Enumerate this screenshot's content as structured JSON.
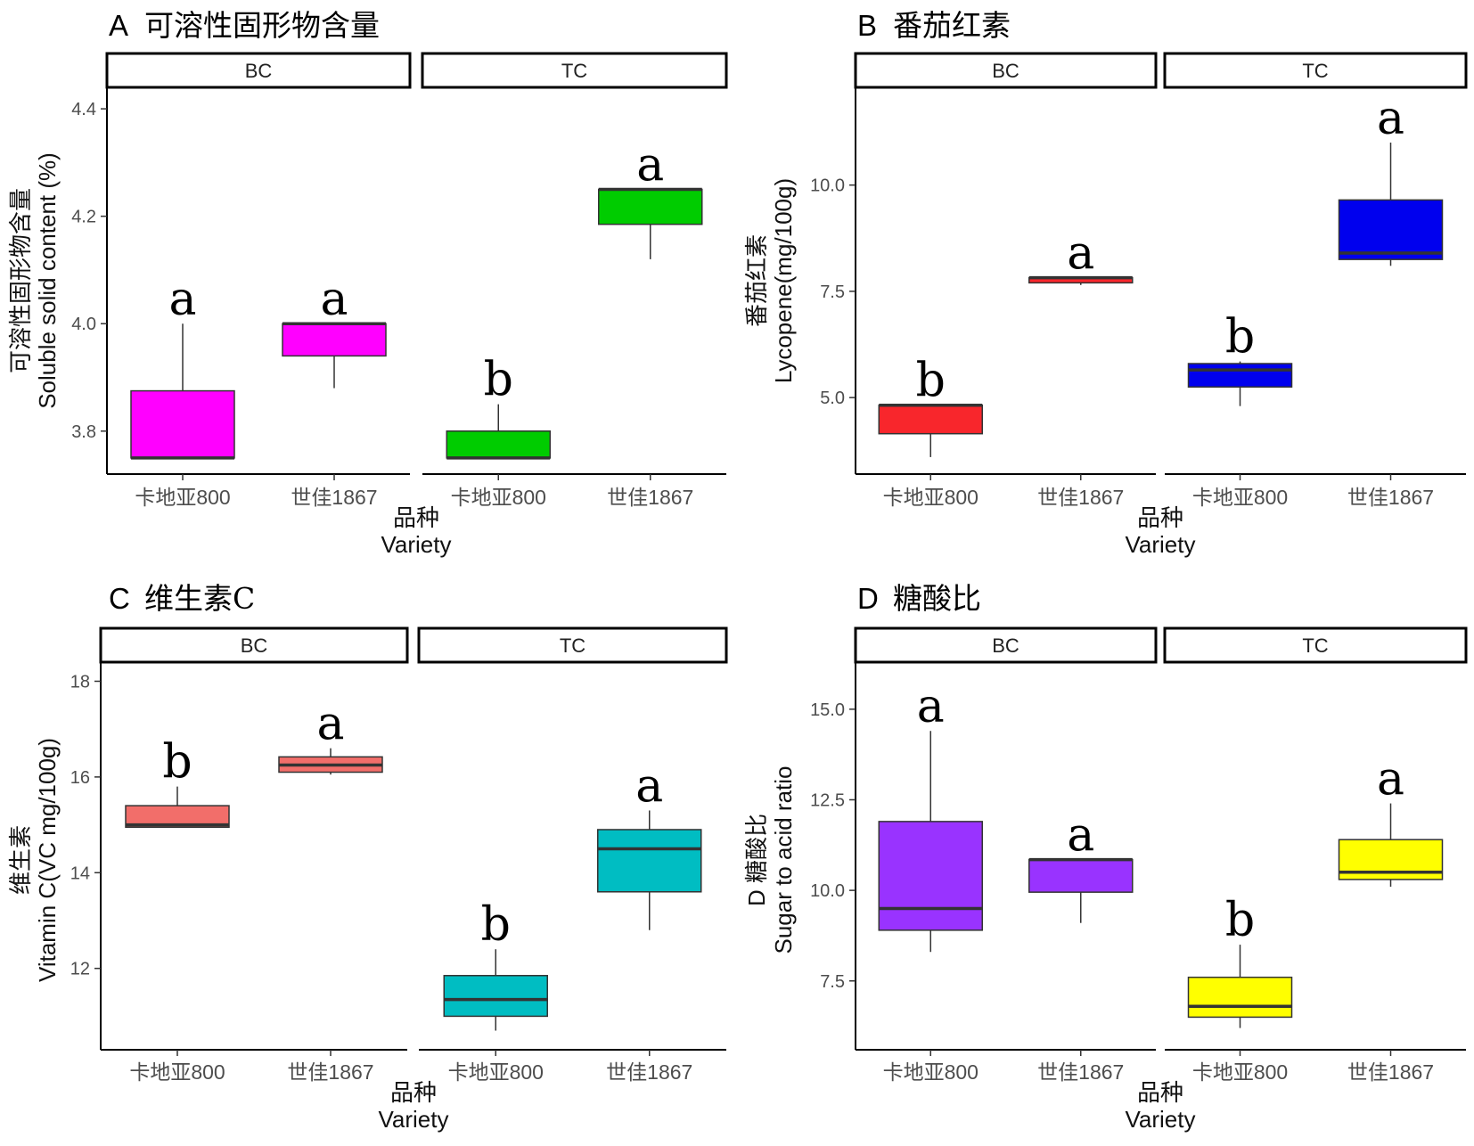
{
  "chart_data": [
    {
      "type": "boxplot",
      "panel_letter": "A",
      "title": "可溶性固形物含量",
      "ylabel_cn": "可溶性固形物含量",
      "ylabel_en": "Soluble solid content (%)",
      "xlabel_cn": "品种",
      "xlabel_en": "Variety",
      "ylim": [
        3.72,
        4.44
      ],
      "yticks": [
        "3.8",
        "4.0",
        "4.2",
        "4.4"
      ],
      "facets": [
        {
          "label": "BC",
          "color": "#ff00ff",
          "boxes": [
            {
              "category": "卡地亚800",
              "min": 3.75,
              "q1": 3.75,
              "median": 3.75,
              "q3": 3.875,
              "max": 4.0,
              "sig": "a"
            },
            {
              "category": "世佳1867",
              "min": 3.88,
              "q1": 3.94,
              "median": 4.0,
              "q3": 4.0,
              "max": 4.0,
              "sig": "a"
            }
          ]
        },
        {
          "label": "TC",
          "color": "#00cc00",
          "boxes": [
            {
              "category": "卡地亚800",
              "min": 3.75,
              "q1": 3.75,
              "median": 3.75,
              "q3": 3.8,
              "max": 3.85,
              "sig": "b"
            },
            {
              "category": "世佳1867",
              "min": 4.12,
              "q1": 4.185,
              "median": 4.25,
              "q3": 4.25,
              "max": 4.25,
              "sig": "a"
            }
          ]
        }
      ]
    },
    {
      "type": "boxplot",
      "panel_letter": "B",
      "title": "番茄红素",
      "ylabel_cn": "番茄红素",
      "ylabel_en": "Lycopene(mg/100g)",
      "xlabel_cn": "品种",
      "xlabel_en": "Variety",
      "ylim": [
        3.2,
        12.3
      ],
      "yticks": [
        "5.0",
        "7.5",
        "10.0"
      ],
      "facets": [
        {
          "label": "BC",
          "color": "#f8262c",
          "boxes": [
            {
              "category": "卡地亚800",
              "min": 3.6,
              "q1": 4.15,
              "median": 4.82,
              "q3": 4.82,
              "max": 4.82,
              "sig": "b"
            },
            {
              "category": "世佳1867",
              "min": 7.65,
              "q1": 7.7,
              "median": 7.82,
              "q3": 7.82,
              "max": 7.82,
              "sig": "a"
            }
          ]
        },
        {
          "label": "TC",
          "color": "#0000ee",
          "boxes": [
            {
              "category": "卡地亚800",
              "min": 4.8,
              "q1": 5.25,
              "median": 5.65,
              "q3": 5.8,
              "max": 5.85,
              "sig": "b"
            },
            {
              "category": "世佳1867",
              "min": 8.1,
              "q1": 8.25,
              "median": 8.4,
              "q3": 9.65,
              "max": 11.0,
              "sig": "a"
            }
          ]
        }
      ]
    },
    {
      "type": "boxplot",
      "panel_letter": "C",
      "title": "维生素C",
      "ylabel_cn": "维生素",
      "ylabel_en": "Vitamin C(VC mg/100g)",
      "xlabel_cn": "品种",
      "xlabel_en": "Variety",
      "ylim": [
        10.3,
        18.4
      ],
      "yticks": [
        "12",
        "14",
        "16",
        "18"
      ],
      "facets": [
        {
          "label": "BC",
          "color": "#f26e6a",
          "boxes": [
            {
              "category": "卡地亚800",
              "min": 14.95,
              "q1": 14.95,
              "median": 15.0,
              "q3": 15.4,
              "max": 15.8,
              "sig": "b"
            },
            {
              "category": "世佳1867",
              "min": 16.05,
              "q1": 16.1,
              "median": 16.25,
              "q3": 16.42,
              "max": 16.6,
              "sig": "a"
            }
          ]
        },
        {
          "label": "TC",
          "color": "#00bdc2",
          "boxes": [
            {
              "category": "卡地亚800",
              "min": 10.7,
              "q1": 11.0,
              "median": 11.35,
              "q3": 11.85,
              "max": 12.4,
              "sig": "b"
            },
            {
              "category": "世佳1867",
              "min": 12.8,
              "q1": 13.6,
              "median": 14.5,
              "q3": 14.9,
              "max": 15.3,
              "sig": "a"
            }
          ]
        }
      ]
    },
    {
      "type": "boxplot",
      "panel_letter": "D",
      "title": "糖酸比",
      "ylabel_cn": "D  糖酸比",
      "ylabel_en": "Sugar to acid ratio",
      "xlabel_cn": "品种",
      "xlabel_en": "Variety",
      "ylim": [
        5.6,
        16.3
      ],
      "yticks": [
        "7.5",
        "10.0",
        "12.5",
        "15.0"
      ],
      "facets": [
        {
          "label": "BC",
          "color": "#9933ff",
          "boxes": [
            {
              "category": "卡地亚800",
              "min": 8.3,
              "q1": 8.9,
              "median": 9.5,
              "q3": 11.9,
              "max": 14.4,
              "sig": "a"
            },
            {
              "category": "世佳1867",
              "min": 9.1,
              "q1": 9.95,
              "median": 10.85,
              "q3": 10.85,
              "max": 10.85,
              "sig": "a"
            }
          ]
        },
        {
          "label": "TC",
          "color": "#ffff00",
          "boxes": [
            {
              "category": "卡地亚800",
              "min": 6.2,
              "q1": 6.5,
              "median": 6.8,
              "q3": 7.6,
              "max": 8.5,
              "sig": "b"
            },
            {
              "category": "世佳1867",
              "min": 10.1,
              "q1": 10.3,
              "median": 10.5,
              "q3": 11.4,
              "max": 12.4,
              "sig": "a"
            }
          ]
        }
      ]
    }
  ]
}
